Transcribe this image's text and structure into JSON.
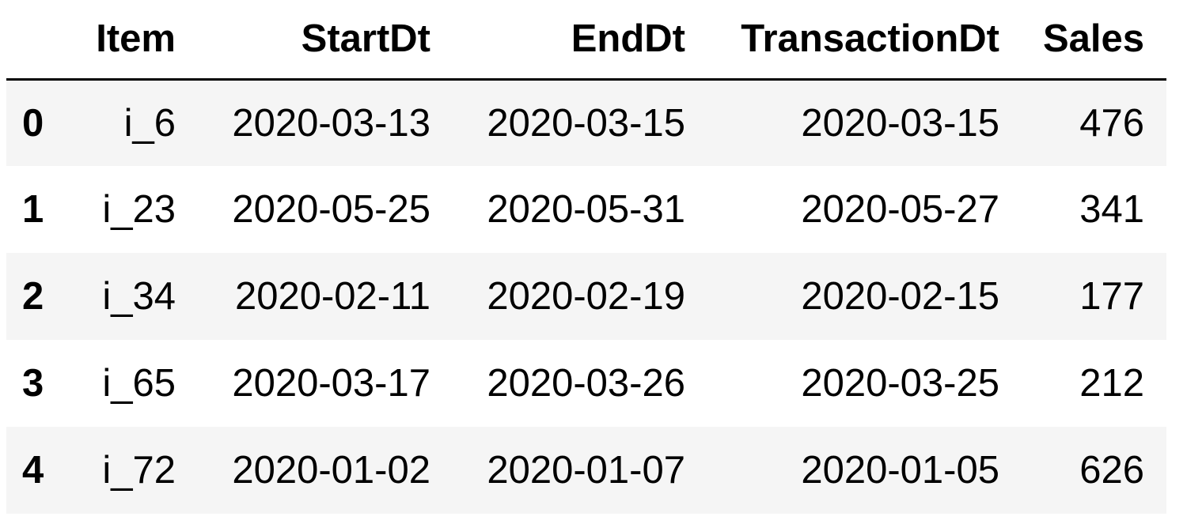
{
  "table": {
    "columns": [
      "",
      "Item",
      "StartDt",
      "EndDt",
      "TransactionDt",
      "Sales"
    ],
    "rows": [
      {
        "index": "0",
        "Item": "i_6",
        "StartDt": "2020-03-13",
        "EndDt": "2020-03-15",
        "TransactionDt": "2020-03-15",
        "Sales": "476"
      },
      {
        "index": "1",
        "Item": "i_23",
        "StartDt": "2020-05-25",
        "EndDt": "2020-05-31",
        "TransactionDt": "2020-05-27",
        "Sales": "341"
      },
      {
        "index": "2",
        "Item": "i_34",
        "StartDt": "2020-02-11",
        "EndDt": "2020-02-19",
        "TransactionDt": "2020-02-15",
        "Sales": "177"
      },
      {
        "index": "3",
        "Item": "i_65",
        "StartDt": "2020-03-17",
        "EndDt": "2020-03-26",
        "TransactionDt": "2020-03-25",
        "Sales": "212"
      },
      {
        "index": "4",
        "Item": "i_72",
        "StartDt": "2020-01-02",
        "EndDt": "2020-01-07",
        "TransactionDt": "2020-01-05",
        "Sales": "626"
      }
    ]
  },
  "colors": {
    "stripe": "#f5f5f5",
    "header_rule": "#000000"
  }
}
